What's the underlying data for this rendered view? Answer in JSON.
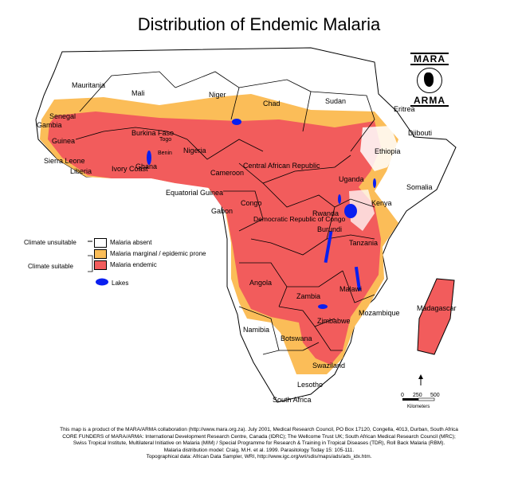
{
  "title": "Distribution of Endemic Malaria",
  "logo": {
    "top": "MARA",
    "bottom": "ARMA"
  },
  "legend": {
    "climate_unsuitable": "Climate unsuitable",
    "climate_suitable": "Climate suitable",
    "absent": "Malaria absent",
    "marginal": "Malaria marginal / epidemic prone",
    "endemic": "Malaria endemic",
    "lakes": "Lakes"
  },
  "colors": {
    "absent": "#ffffff",
    "marginal": "#fbbd58",
    "endemic": "#f25c5c",
    "lakes": "#0a1ff0",
    "border": "#000000"
  },
  "countries": [
    "Mauritania",
    "Mali",
    "Niger",
    "Chad",
    "Sudan",
    "Eritrea",
    "Djibouti",
    "Ethiopia",
    "Somalia",
    "Senegal",
    "Gambia",
    "Guinea",
    "Sierra Leone",
    "Liberia",
    "Burkina Faso",
    "Ghana",
    "Nigeria",
    "Cameroon",
    "Central African Republic",
    "Equatorial Guinea",
    "Gabon",
    "Congo",
    "Democratic Republic of Congo",
    "Uganda",
    "Kenya",
    "Rwanda",
    "Burundi",
    "Tanzania",
    "Angola",
    "Zambia",
    "Malawi",
    "Mozambique",
    "Madagascar",
    "Zimbabwe",
    "Namibia",
    "Botswana",
    "Swaziland",
    "Lesotho",
    "South Africa",
    "Ivory Coast",
    "Togo",
    "Benin"
  ],
  "scale": {
    "ticks": [
      "0",
      "250",
      "500"
    ],
    "unit": "Kilometers"
  },
  "footer": [
    "This map is a product of the MARA/ARMA collaboration (http://www.mara.org.za).  July 2001, Medical Research Council, PO Box 17120, Congella, 4013, Durban, South Africa",
    "CORE FUNDERS of MARA/ARMA: International Development Research Centre, Canada (IDRC); The Wellcome Trust UK; South African Medical Research Council (MRC);",
    "Swiss Tropical Institute, Multilateral Initiative on Malaria (MIM) / Special Programme for Research & Training in Tropical Diseases (TDR), Roll Back Malaria (RBM).",
    "Malaria distribution model: Craig, M.H. et al. 1999.  Parasitology Today 15: 105-111.",
    "Topographical data: African Data Sampler, WRI, http://www.igc.org/wri/sdis/maps/ads/ads_idx.htm."
  ]
}
